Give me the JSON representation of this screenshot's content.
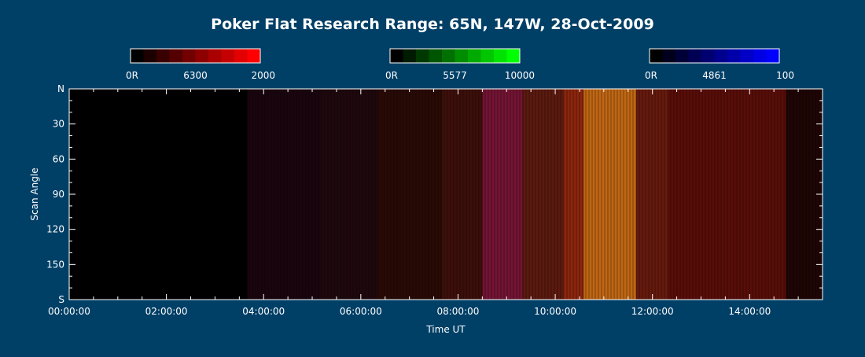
{
  "chart_data": {
    "type": "heatmap",
    "title": "Poker Flat Research Range: 65N, 147W, 28-Oct-2009",
    "xlabel": "Time UT",
    "ylabel": "Scan Angle",
    "x_range": [
      "00:00:00",
      "15:30:00"
    ],
    "x_ticks": [
      "00:00:00",
      "02:00:00",
      "04:00:00",
      "06:00:00",
      "08:00:00",
      "10:00:00",
      "12:00:00",
      "14:00:00"
    ],
    "y_range": [
      0,
      180
    ],
    "y_ticks": [
      {
        "value": 0,
        "label": "N"
      },
      {
        "value": 30,
        "label": "30"
      },
      {
        "value": 60,
        "label": "60"
      },
      {
        "value": 90,
        "label": "90"
      },
      {
        "value": 120,
        "label": "120"
      },
      {
        "value": 150,
        "label": "150"
      },
      {
        "value": 180,
        "label": "S"
      }
    ],
    "colorbars": [
      {
        "wavelength": "6300",
        "min_label": "0R",
        "max_label": "2000",
        "max": 2000,
        "color": "#ff0000"
      },
      {
        "wavelength": "5577",
        "min_label": "0R",
        "max_label": "10000",
        "max": 10000,
        "color": "#00ff00"
      },
      {
        "wavelength": "4861",
        "min_label": "0R",
        "max_label": "100",
        "max": 100,
        "color": "#0000ff"
      }
    ],
    "intensity_profile": [
      {
        "start": "00:00:00",
        "end": "03:40:00",
        "r": 0.0,
        "g": 0.0,
        "b": 0.0
      },
      {
        "start": "03:40:00",
        "end": "05:10:00",
        "r": 0.1,
        "g": 0.02,
        "b": 0.06
      },
      {
        "start": "05:10:00",
        "end": "06:20:00",
        "r": 0.12,
        "g": 0.03,
        "b": 0.05
      },
      {
        "start": "06:20:00",
        "end": "07:40:00",
        "r": 0.16,
        "g": 0.04,
        "b": 0.02
      },
      {
        "start": "07:40:00",
        "end": "08:30:00",
        "r": 0.24,
        "g": 0.06,
        "b": 0.04
      },
      {
        "start": "08:30:00",
        "end": "09:20:00",
        "r": 0.45,
        "g": 0.08,
        "b": 0.2
      },
      {
        "start": "09:20:00",
        "end": "10:10:00",
        "r": 0.36,
        "g": 0.1,
        "b": 0.06
      },
      {
        "start": "10:10:00",
        "end": "10:35:00",
        "r": 0.55,
        "g": 0.15,
        "b": 0.05
      },
      {
        "start": "10:35:00",
        "end": "11:40:00",
        "r": 0.75,
        "g": 0.4,
        "b": 0.08
      },
      {
        "start": "11:40:00",
        "end": "12:20:00",
        "r": 0.4,
        "g": 0.1,
        "b": 0.05
      },
      {
        "start": "12:20:00",
        "end": "14:45:00",
        "r": 0.35,
        "g": 0.05,
        "b": 0.03
      },
      {
        "start": "14:45:00",
        "end": "15:30:00",
        "r": 0.12,
        "g": 0.02,
        "b": 0.02
      }
    ]
  }
}
